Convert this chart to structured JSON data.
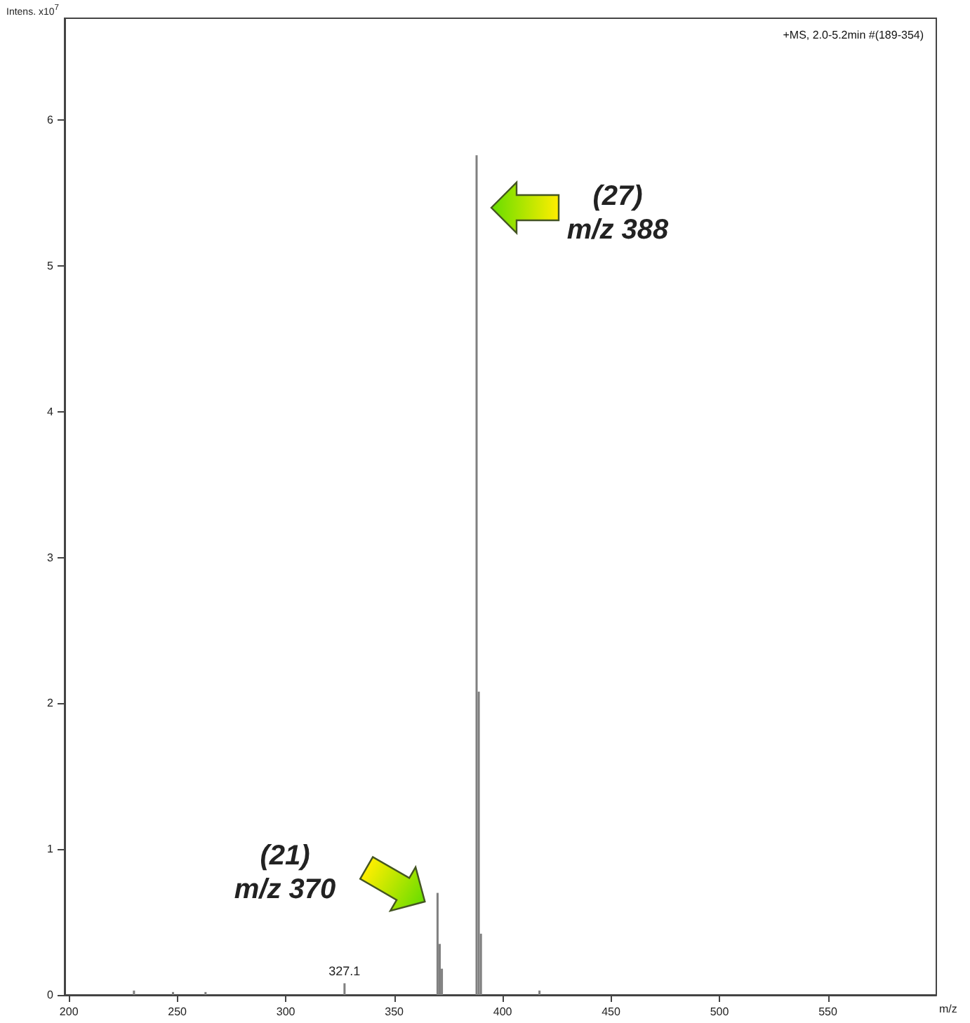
{
  "chart_data": {
    "type": "bar",
    "title": "+MS, 2.0-5.2min #(189-354)",
    "xlabel": "m/z",
    "ylabel": "Intens. x10$^{7}$",
    "x": [
      230,
      248,
      263,
      327.1,
      370,
      371,
      372,
      388,
      389,
      390,
      417
    ],
    "values": [
      0.03,
      0.02,
      0.02,
      0.08,
      0.7,
      0.35,
      0.18,
      5.76,
      2.08,
      0.42,
      0.03
    ],
    "color": "#808080",
    "xlim": [
      198,
      600
    ],
    "xticks": [
      200,
      250,
      300,
      350,
      400,
      450,
      500,
      550
    ],
    "ylim": [
      0,
      6.7
    ],
    "yticks": [
      0,
      1,
      2,
      3,
      4,
      5,
      6
    ],
    "grid": false,
    "annotations": [
      "(27) m/z 388",
      "(21) m/z 370",
      {
        "text": "327.1",
        "x": 327.1,
        "y": 0.08
      }
    ]
  }
}
